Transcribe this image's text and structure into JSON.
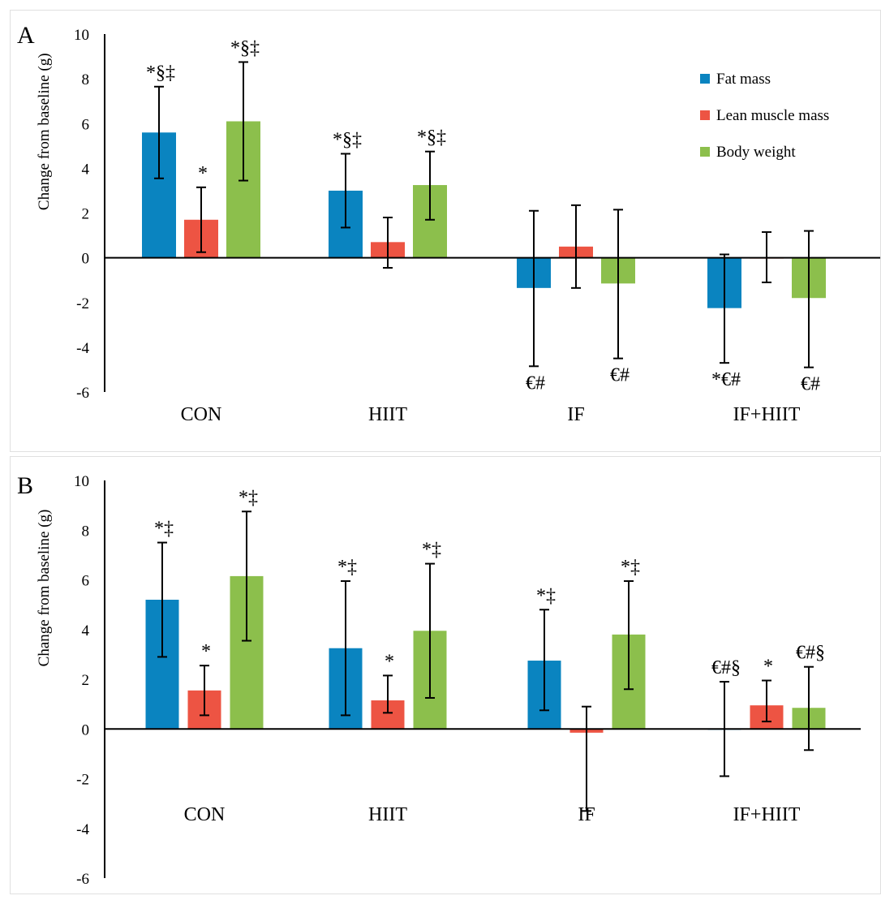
{
  "colors": {
    "fat_mass": "#0a84c0",
    "lean_muscle_mass": "#ed5443",
    "body_weight": "#8cbf4c",
    "axis": "#000000"
  },
  "legend": {
    "entries": [
      "Fat mass",
      "Lean muscle mass",
      "Body weight"
    ]
  },
  "chart_data": [
    {
      "panel_label": "A",
      "type": "bar",
      "ylabel": "Change from baseline (g)",
      "ylim": [
        -6,
        10
      ],
      "yticks": [
        "10",
        "8",
        "6",
        "4",
        "2",
        "0",
        "-2",
        "-4",
        "-6"
      ],
      "categories": [
        "CON",
        "HIIT",
        "IF",
        "IF+HIIT"
      ],
      "legend_placement": "top-right",
      "grid": false,
      "series": [
        {
          "name": "Fat mass",
          "values": [
            5.6,
            3.0,
            -1.35,
            -2.25
          ],
          "err_low": [
            3.55,
            1.35,
            -4.85,
            -4.7
          ],
          "err_high": [
            7.65,
            4.65,
            2.1,
            0.15
          ],
          "annotations": [
            "*§‡",
            "*§‡",
            "€#",
            "*€#"
          ]
        },
        {
          "name": "Lean muscle mass",
          "values": [
            1.7,
            0.7,
            0.5,
            0.0
          ],
          "err_low": [
            0.25,
            -0.45,
            -1.35,
            -1.1
          ],
          "err_high": [
            3.15,
            1.8,
            2.35,
            1.15
          ],
          "annotations": [
            "*",
            "",
            "",
            ""
          ]
        },
        {
          "name": "Body weight",
          "values": [
            6.1,
            3.25,
            -1.15,
            -1.8
          ],
          "err_low": [
            3.45,
            1.7,
            -4.5,
            -4.9
          ],
          "err_high": [
            8.75,
            4.75,
            2.15,
            1.2
          ],
          "annotations": [
            "*§‡",
            "*§‡",
            "€#",
            "€#"
          ]
        }
      ]
    },
    {
      "panel_label": "B",
      "type": "bar",
      "ylabel": "Change from baseline (g)",
      "ylim": [
        -6,
        10
      ],
      "yticks": [
        "10",
        "8",
        "6",
        "4",
        "2",
        "0",
        "-2",
        "-4",
        "-6"
      ],
      "categories": [
        "CON",
        "HIIT",
        "IF",
        "IF+HIIT"
      ],
      "legend_placement": "none",
      "grid": false,
      "series": [
        {
          "name": "Fat mass",
          "values": [
            5.2,
            3.25,
            2.75,
            0.0
          ],
          "err_low": [
            2.9,
            0.55,
            0.75,
            -1.9
          ],
          "err_high": [
            7.5,
            5.95,
            4.8,
            1.9
          ],
          "annotations": [
            "*‡",
            "*‡",
            "*‡",
            "€#§"
          ]
        },
        {
          "name": "Lean muscle mass",
          "values": [
            1.55,
            1.15,
            -0.15,
            0.95
          ],
          "err_low": [
            0.55,
            0.65,
            -3.3,
            0.3
          ],
          "err_high": [
            2.55,
            2.15,
            0.9,
            1.95
          ],
          "annotations": [
            "*",
            "*",
            "",
            "*"
          ]
        },
        {
          "name": "Body weight",
          "values": [
            6.15,
            3.95,
            3.8,
            0.85
          ],
          "err_low": [
            3.55,
            1.25,
            1.6,
            -0.85
          ],
          "err_high": [
            8.75,
            6.65,
            5.95,
            2.5
          ],
          "annotations": [
            "*‡",
            "*‡",
            "*‡",
            "€#§"
          ]
        }
      ]
    }
  ]
}
